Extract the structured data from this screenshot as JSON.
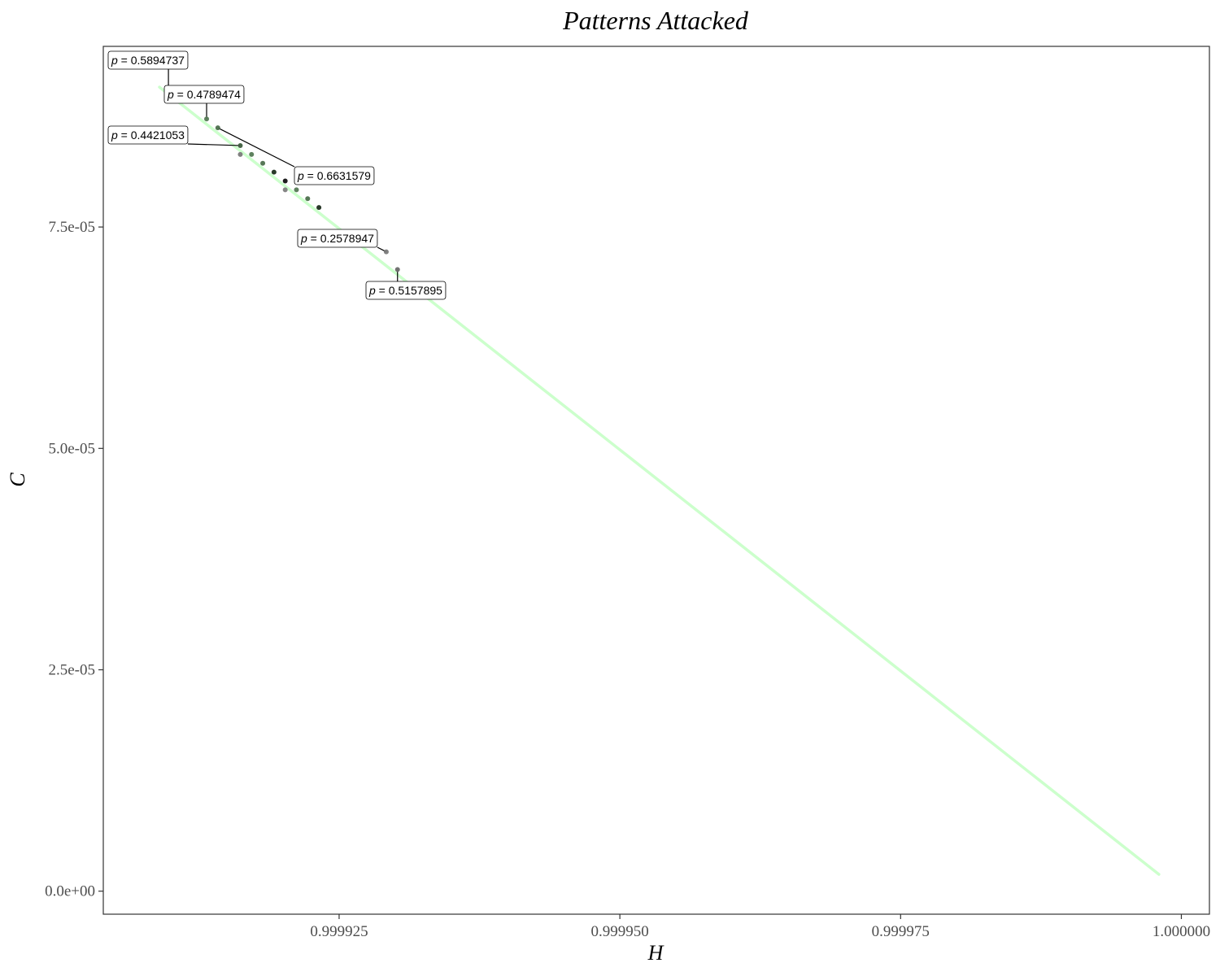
{
  "chart_data": {
    "type": "scatter",
    "title": "Patterns Attacked",
    "xlabel": "H",
    "ylabel": "C",
    "xlim": [
      0.999904,
      1.0000025
    ],
    "ylim": [
      -2.6e-06,
      9.54e-05
    ],
    "x_ticks": [
      {
        "value": 0.999925,
        "label": "0.999925"
      },
      {
        "value": 0.99995,
        "label": "0.999950"
      },
      {
        "value": 0.999975,
        "label": "0.999975"
      },
      {
        "value": 1.0,
        "label": "1.000000"
      }
    ],
    "y_ticks": [
      {
        "value": 0.0,
        "label": "0.0e+00"
      },
      {
        "value": 2.5e-05,
        "label": "2.5e-05"
      },
      {
        "value": 5e-05,
        "label": "5.0e-05"
      },
      {
        "value": 7.5e-05,
        "label": "7.5e-05"
      }
    ],
    "grid": false,
    "reference_line": {
      "color": "#ccffcc",
      "points": [
        [
          0.999909,
          9.08e-05
        ],
        [
          0.999998,
          1.9e-06
        ]
      ]
    },
    "points": [
      {
        "x": 0.9999098,
        "y": 9.07e-05,
        "color": "#6b6b6b"
      },
      {
        "x": 0.9999132,
        "y": 8.72e-05,
        "color": "#557a55"
      },
      {
        "x": 0.9999142,
        "y": 8.62e-05,
        "color": "#4d704d"
      },
      {
        "x": 0.9999162,
        "y": 8.42e-05,
        "color": "#3f5f3f"
      },
      {
        "x": 0.9999162,
        "y": 8.32e-05,
        "color": "#7a7a7a"
      },
      {
        "x": 0.9999172,
        "y": 8.32e-05,
        "color": "#557a55"
      },
      {
        "x": 0.9999182,
        "y": 8.22e-05,
        "color": "#4d704d"
      },
      {
        "x": 0.9999192,
        "y": 8.12e-05,
        "color": "#1e2e1e"
      },
      {
        "x": 0.9999202,
        "y": 8.02e-05,
        "color": "#111111"
      },
      {
        "x": 0.9999202,
        "y": 7.92e-05,
        "color": "#808080"
      },
      {
        "x": 0.9999212,
        "y": 7.92e-05,
        "color": "#557a55"
      },
      {
        "x": 0.9999222,
        "y": 7.82e-05,
        "color": "#4d704d"
      },
      {
        "x": 0.9999232,
        "y": 7.72e-05,
        "color": "#1e2e1e"
      },
      {
        "x": 0.9999292,
        "y": 7.22e-05,
        "color": "#7a7a7a"
      },
      {
        "x": 0.9999302,
        "y": 7.02e-05,
        "color": "#6b6b6b"
      }
    ],
    "annotations": [
      {
        "label": "0.5894737",
        "point_index": 0
      },
      {
        "label": "0.4789474",
        "point_index": 1
      },
      {
        "label": "0.4421053",
        "point_index": 3
      },
      {
        "label": "0.6631579",
        "point_index": 2
      },
      {
        "label": "0.2578947",
        "point_index": 13
      },
      {
        "label": "0.5157895",
        "point_index": 14
      }
    ],
    "annotation_prefix": "p = "
  }
}
